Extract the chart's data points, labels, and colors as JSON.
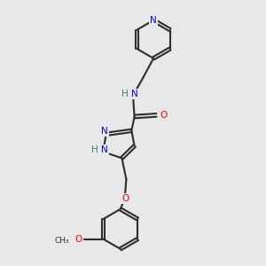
{
  "bg_color": "#e8e8e8",
  "bond_color": "#2d2d2d",
  "N_color": "#0000ff",
  "O_color": "#ff0000",
  "H_color": "#408080",
  "lw": 1.5,
  "dbg": 0.06,
  "fs": 8.5,
  "fs_small": 7.5,
  "xlim": [
    0,
    10
  ],
  "ylim": [
    0,
    10
  ]
}
